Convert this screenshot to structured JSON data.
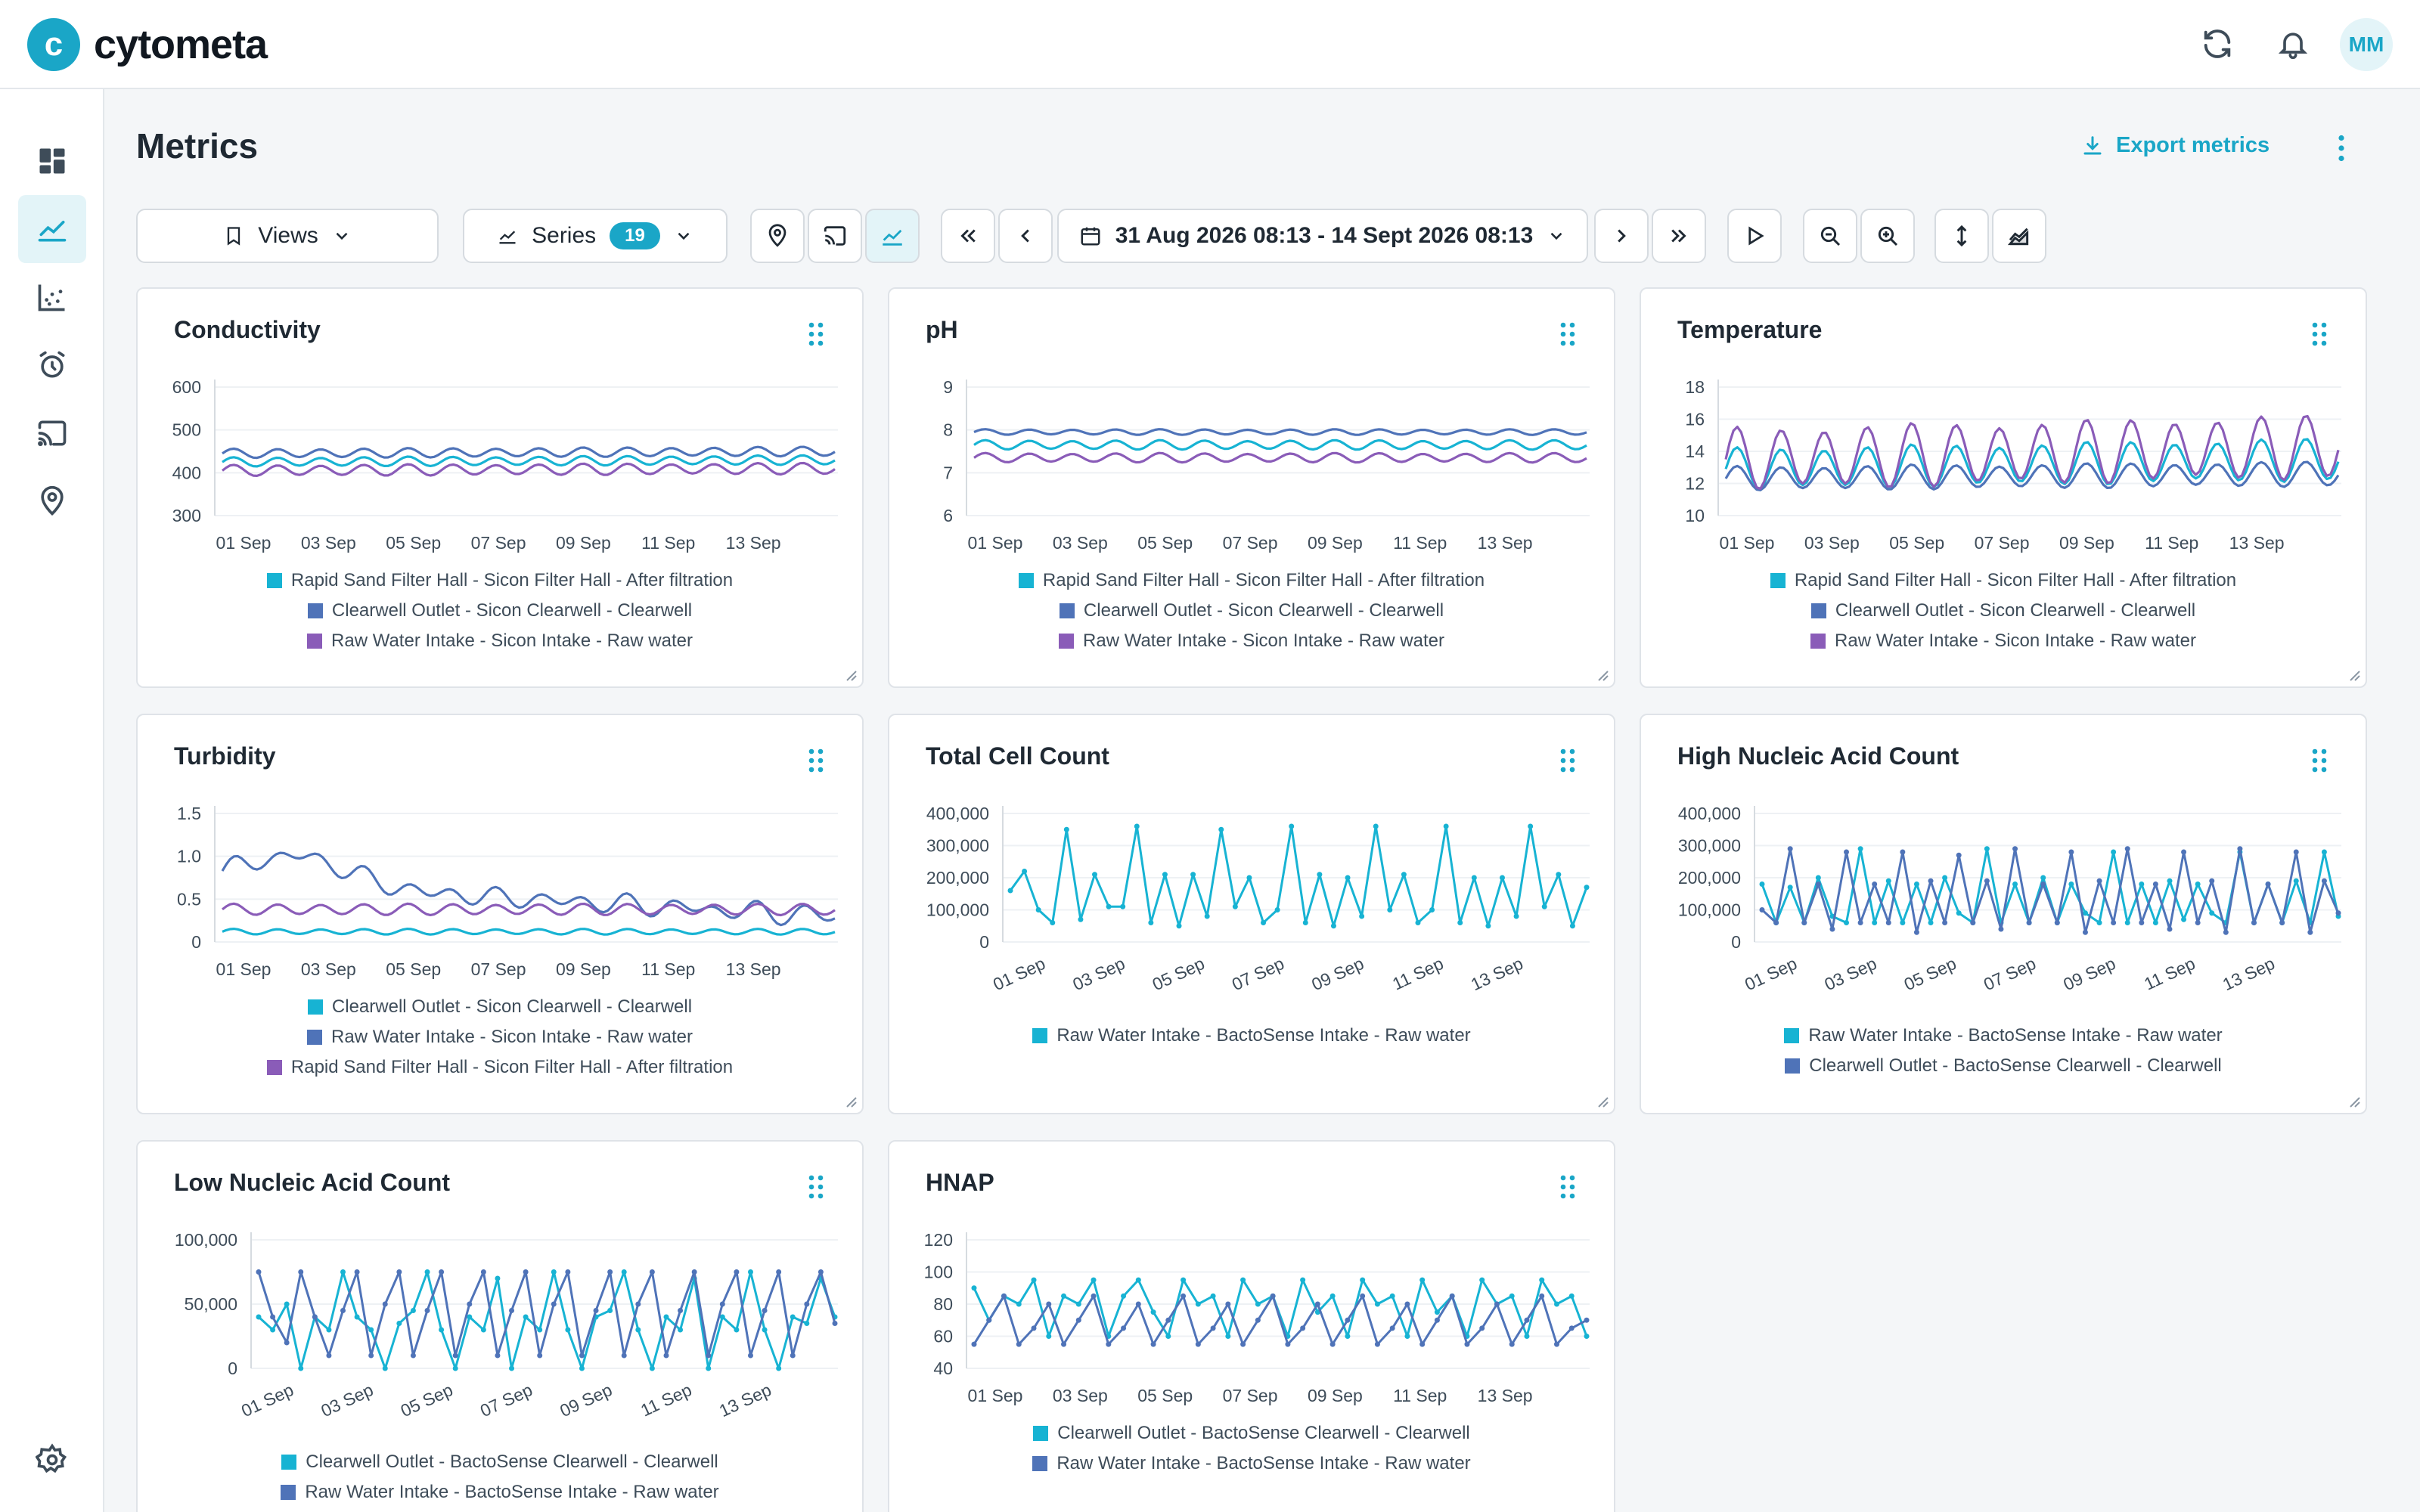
{
  "app": {
    "brand": "cytometa",
    "user_initials": "MM"
  },
  "page": {
    "title": "Metrics",
    "export_label": "Export metrics"
  },
  "toolbar": {
    "views_label": "Views",
    "series_label": "Series",
    "series_count": "19",
    "date_range": "31 Aug 2026 08:13 - 14 Sept 2026 08:13"
  },
  "colors": {
    "cyan": "#17b3d3",
    "blue": "#4f73b8",
    "purple": "#8a5cb8",
    "accent": "#1aa6c7"
  },
  "icons": {
    "top": [
      "refresh-icon",
      "bell-icon"
    ],
    "sidebar": [
      "dashboard-icon",
      "metrics-chart-icon",
      "scatter-plot-icon",
      "alarm-icon",
      "cast-icon",
      "location-pin-icon",
      "settings-icon"
    ]
  },
  "chart_data": [
    {
      "type": "line",
      "title": "Conductivity",
      "ylim": [
        300,
        600
      ],
      "yticks": [
        "600",
        "500",
        "400",
        "300"
      ],
      "xticks": [
        "01 Sep",
        "03 Sep",
        "05 Sep",
        "07 Sep",
        "09 Sep",
        "11 Sep",
        "13 Sep"
      ],
      "rotate": false,
      "series": [
        {
          "name": "Rapid Sand Filter Hall - Sicon Filter Hall - After filtration",
          "color": "#17b3d3",
          "base": 425,
          "amp": 10,
          "period": 1.0,
          "trend": 5,
          "kind": "wave"
        },
        {
          "name": "Clearwell Outlet - Sicon Clearwell - Clearwell",
          "color": "#4f73b8",
          "base": 445,
          "amp": 10,
          "period": 1.0,
          "trend": 5,
          "kind": "wave"
        },
        {
          "name": "Raw Water Intake - Sicon Intake - Raw water",
          "color": "#8a5cb8",
          "base": 405,
          "amp": 12,
          "period": 1.0,
          "trend": 5,
          "kind": "wave"
        }
      ]
    },
    {
      "type": "line",
      "title": "pH",
      "ylim": [
        6,
        9
      ],
      "yticks": [
        "9",
        "8",
        "7",
        "6"
      ],
      "xticks": [
        "01 Sep",
        "03 Sep",
        "05 Sep",
        "07 Sep",
        "09 Sep",
        "11 Sep",
        "13 Sep"
      ],
      "rotate": false,
      "series": [
        {
          "name": "Rapid Sand Filter Hall - Sicon Filter Hall - After filtration",
          "color": "#17b3d3",
          "base": 7.65,
          "amp": 0.1,
          "period": 1.0,
          "trend": 0,
          "kind": "wave"
        },
        {
          "name": "Clearwell Outlet - Sicon Clearwell - Clearwell",
          "color": "#4f73b8",
          "base": 7.95,
          "amp": 0.06,
          "period": 1.0,
          "trend": 0,
          "kind": "wave"
        },
        {
          "name": "Raw Water Intake - Sicon Intake - Raw water",
          "color": "#8a5cb8",
          "base": 7.35,
          "amp": 0.1,
          "period": 1.0,
          "trend": 0,
          "kind": "wave"
        }
      ]
    },
    {
      "type": "line",
      "title": "Temperature",
      "ylim": [
        10,
        18
      ],
      "yticks": [
        "18",
        "16",
        "14",
        "12",
        "10"
      ],
      "xticks": [
        "01 Sep",
        "03 Sep",
        "05 Sep",
        "07 Sep",
        "09 Sep",
        "11 Sep",
        "13 Sep"
      ],
      "rotate": false,
      "series": [
        {
          "name": "Rapid Sand Filter Hall - Sicon Filter Hall - After filtration",
          "color": "#17b3d3",
          "base": 12.9,
          "amp": 1.2,
          "period": 1.0,
          "trend": 0.6,
          "kind": "wave"
        },
        {
          "name": "Clearwell Outlet - Sicon Clearwell - Clearwell",
          "color": "#4f73b8",
          "base": 12.3,
          "amp": 0.7,
          "period": 1.0,
          "trend": 0.3,
          "kind": "wave"
        },
        {
          "name": "Raw Water Intake - Sicon Intake - Raw water",
          "color": "#8a5cb8",
          "base": 13.5,
          "amp": 1.8,
          "period": 1.0,
          "trend": 0.8,
          "kind": "wave"
        }
      ]
    },
    {
      "type": "line",
      "title": "Turbidity",
      "ylim": [
        0,
        1.5
      ],
      "yticks": [
        "1.5",
        "1.0",
        "0.5",
        "0"
      ],
      "xticks": [
        "01 Sep",
        "03 Sep",
        "05 Sep",
        "07 Sep",
        "09 Sep",
        "11 Sep",
        "13 Sep"
      ],
      "rotate": false,
      "series": [
        {
          "name": "Clearwell Outlet - Sicon Clearwell - Clearwell",
          "color": "#17b3d3",
          "base": 0.12,
          "amp": 0.03,
          "period": 1.0,
          "trend": 0,
          "kind": "wave"
        },
        {
          "name": "Raw Water Intake - Sicon Intake - Raw water",
          "color": "#4f73b8",
          "base": 0.7,
          "amp": 0.08,
          "period": 1.0,
          "trend": -0.2,
          "kind": "hump"
        },
        {
          "name": "Rapid Sand Filter Hall - Sicon Filter Hall - After filtration",
          "color": "#8a5cb8",
          "base": 0.38,
          "amp": 0.06,
          "period": 1.0,
          "trend": 0,
          "kind": "wave"
        }
      ]
    },
    {
      "type": "line",
      "title": "Total Cell Count",
      "ylim": [
        0,
        400000
      ],
      "yticks": [
        "400,000",
        "300,000",
        "200,000",
        "100,000",
        "0"
      ],
      "xticks": [
        "01 Sep",
        "03 Sep",
        "05 Sep",
        "07 Sep",
        "09 Sep",
        "11 Sep",
        "13 Sep"
      ],
      "rotate": true,
      "series": [
        {
          "name": "Raw Water Intake - BactoSense Intake - Raw water",
          "color": "#17b3d3",
          "kind": "spike",
          "values": [
            160000,
            220000,
            100000,
            60000,
            350000,
            70000,
            210000,
            110000,
            110000,
            360000,
            60000,
            210000,
            50000,
            210000,
            80000,
            350000,
            110000,
            200000,
            60000,
            100000,
            360000,
            60000,
            210000,
            50000,
            200000,
            80000,
            360000,
            100000,
            210000,
            60000,
            100000,
            360000,
            60000,
            200000,
            50000,
            200000,
            80000,
            360000,
            110000,
            210000,
            50000,
            170000
          ]
        }
      ]
    },
    {
      "type": "line",
      "title": "High Nucleic Acid Count",
      "ylim": [
        0,
        400000
      ],
      "yticks": [
        "400,000",
        "300,000",
        "200,000",
        "100,000",
        "0"
      ],
      "xticks": [
        "01 Sep",
        "03 Sep",
        "05 Sep",
        "07 Sep",
        "09 Sep",
        "11 Sep",
        "13 Sep"
      ],
      "rotate": true,
      "series": [
        {
          "name": "Raw Water Intake - BactoSense Intake - Raw water",
          "color": "#17b3d3",
          "kind": "spike",
          "values": [
            180000,
            60000,
            170000,
            60000,
            200000,
            80000,
            60000,
            290000,
            60000,
            190000,
            60000,
            180000,
            60000,
            200000,
            90000,
            60000,
            290000,
            60000,
            180000,
            60000,
            200000,
            60000,
            180000,
            90000,
            60000,
            280000,
            60000,
            180000,
            60000,
            190000,
            70000,
            180000,
            90000,
            60000,
            280000,
            60000,
            180000,
            60000,
            190000,
            60000,
            280000,
            80000
          ]
        },
        {
          "name": "Clearwell Outlet - BactoSense Clearwell - Clearwell",
          "color": "#4f73b8",
          "kind": "spike",
          "values": [
            100000,
            60000,
            290000,
            60000,
            180000,
            40000,
            280000,
            60000,
            180000,
            60000,
            280000,
            30000,
            190000,
            60000,
            270000,
            60000,
            190000,
            40000,
            290000,
            60000,
            180000,
            60000,
            280000,
            30000,
            190000,
            60000,
            290000,
            60000,
            180000,
            40000,
            280000,
            60000,
            190000,
            30000,
            290000,
            60000,
            180000,
            60000,
            280000,
            30000,
            190000,
            90000
          ]
        }
      ]
    },
    {
      "type": "line",
      "title": "Low Nucleic Acid Count",
      "ylim": [
        0,
        100000
      ],
      "yticks": [
        "100,000",
        "50,000",
        "0"
      ],
      "xticks": [
        "01 Sep",
        "03 Sep",
        "05 Sep",
        "07 Sep",
        "09 Sep",
        "11 Sep",
        "13 Sep"
      ],
      "rotate": true,
      "series": [
        {
          "name": "Clearwell Outlet - BactoSense Clearwell - Clearwell",
          "color": "#17b3d3",
          "kind": "spike",
          "values": [
            40000,
            30000,
            50000,
            0,
            40000,
            30000,
            75000,
            40000,
            30000,
            0,
            35000,
            45000,
            75000,
            30000,
            0,
            40000,
            30000,
            70000,
            0,
            40000,
            30000,
            75000,
            30000,
            0,
            40000,
            45000,
            75000,
            30000,
            0,
            40000,
            30000,
            70000,
            0,
            40000,
            30000,
            75000,
            30000,
            0,
            40000,
            35000,
            70000,
            40000
          ]
        },
        {
          "name": "Raw Water Intake - BactoSense Intake - Raw water",
          "color": "#4f73b8",
          "kind": "spike",
          "values": [
            75000,
            40000,
            20000,
            75000,
            40000,
            10000,
            45000,
            75000,
            10000,
            50000,
            75000,
            10000,
            45000,
            75000,
            10000,
            50000,
            75000,
            10000,
            45000,
            75000,
            10000,
            50000,
            75000,
            10000,
            45000,
            75000,
            10000,
            50000,
            75000,
            10000,
            45000,
            75000,
            10000,
            50000,
            75000,
            10000,
            45000,
            75000,
            10000,
            50000,
            75000,
            35000
          ]
        }
      ]
    },
    {
      "type": "line",
      "title": "HNAP",
      "ylim": [
        40,
        120
      ],
      "yticks": [
        "120",
        "100",
        "80",
        "60",
        "40"
      ],
      "xticks": [
        "01 Sep",
        "03 Sep",
        "05 Sep",
        "07 Sep",
        "09 Sep",
        "11 Sep",
        "13 Sep"
      ],
      "rotate": false,
      "series": [
        {
          "name": "Clearwell Outlet - BactoSense Clearwell - Clearwell",
          "color": "#17b3d3",
          "kind": "spike",
          "values": [
            90000,
            70000,
            85000,
            80000,
            95000,
            60000,
            85000,
            80000,
            95000,
            60000,
            85000,
            95000,
            75000,
            60000,
            95000,
            80000,
            85000,
            60000,
            95000,
            80000,
            85000,
            60000,
            95000,
            75000,
            85000,
            60000,
            95000,
            80000,
            85000,
            60000,
            95000,
            75000,
            85000,
            60000,
            95000,
            80000,
            85000,
            60000,
            95000,
            80000,
            85000,
            60000
          ],
          "scale": 0.001
        },
        {
          "name": "Raw Water Intake - BactoSense Intake - Raw water",
          "color": "#4f73b8",
          "kind": "spike",
          "values": [
            55000,
            70000,
            85000,
            55000,
            65000,
            80000,
            55000,
            70000,
            85000,
            55000,
            65000,
            80000,
            55000,
            70000,
            85000,
            55000,
            65000,
            80000,
            55000,
            70000,
            85000,
            55000,
            65000,
            80000,
            55000,
            70000,
            85000,
            55000,
            65000,
            80000,
            55000,
            70000,
            85000,
            55000,
            65000,
            80000,
            55000,
            70000,
            85000,
            55000,
            65000,
            70000
          ],
          "scale": 0.001
        }
      ]
    }
  ]
}
